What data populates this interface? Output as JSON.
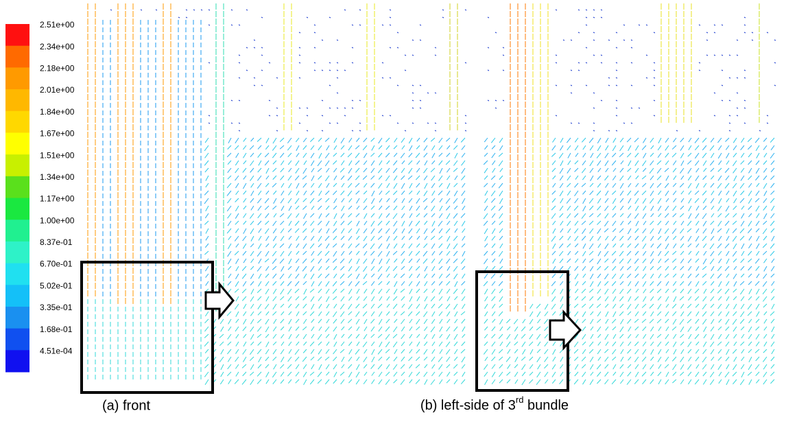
{
  "colorbar": {
    "labels": [
      "2.51e+00",
      "2.34e+00",
      "2.18e+00",
      "2.01e+00",
      "1.84e+00",
      "1.67e+00",
      "1.51e+00",
      "1.34e+00",
      "1.17e+00",
      "1.00e+00",
      "8.37e-01",
      "6.70e-01",
      "5.02e-01",
      "3.35e-01",
      "1.68e-01",
      "4.51e-04"
    ]
  },
  "captions": {
    "a": "(a) front",
    "b": {
      "prefix": "(b) left-side of 3",
      "superscript": "rd",
      "suffix": " bundle"
    }
  }
}
